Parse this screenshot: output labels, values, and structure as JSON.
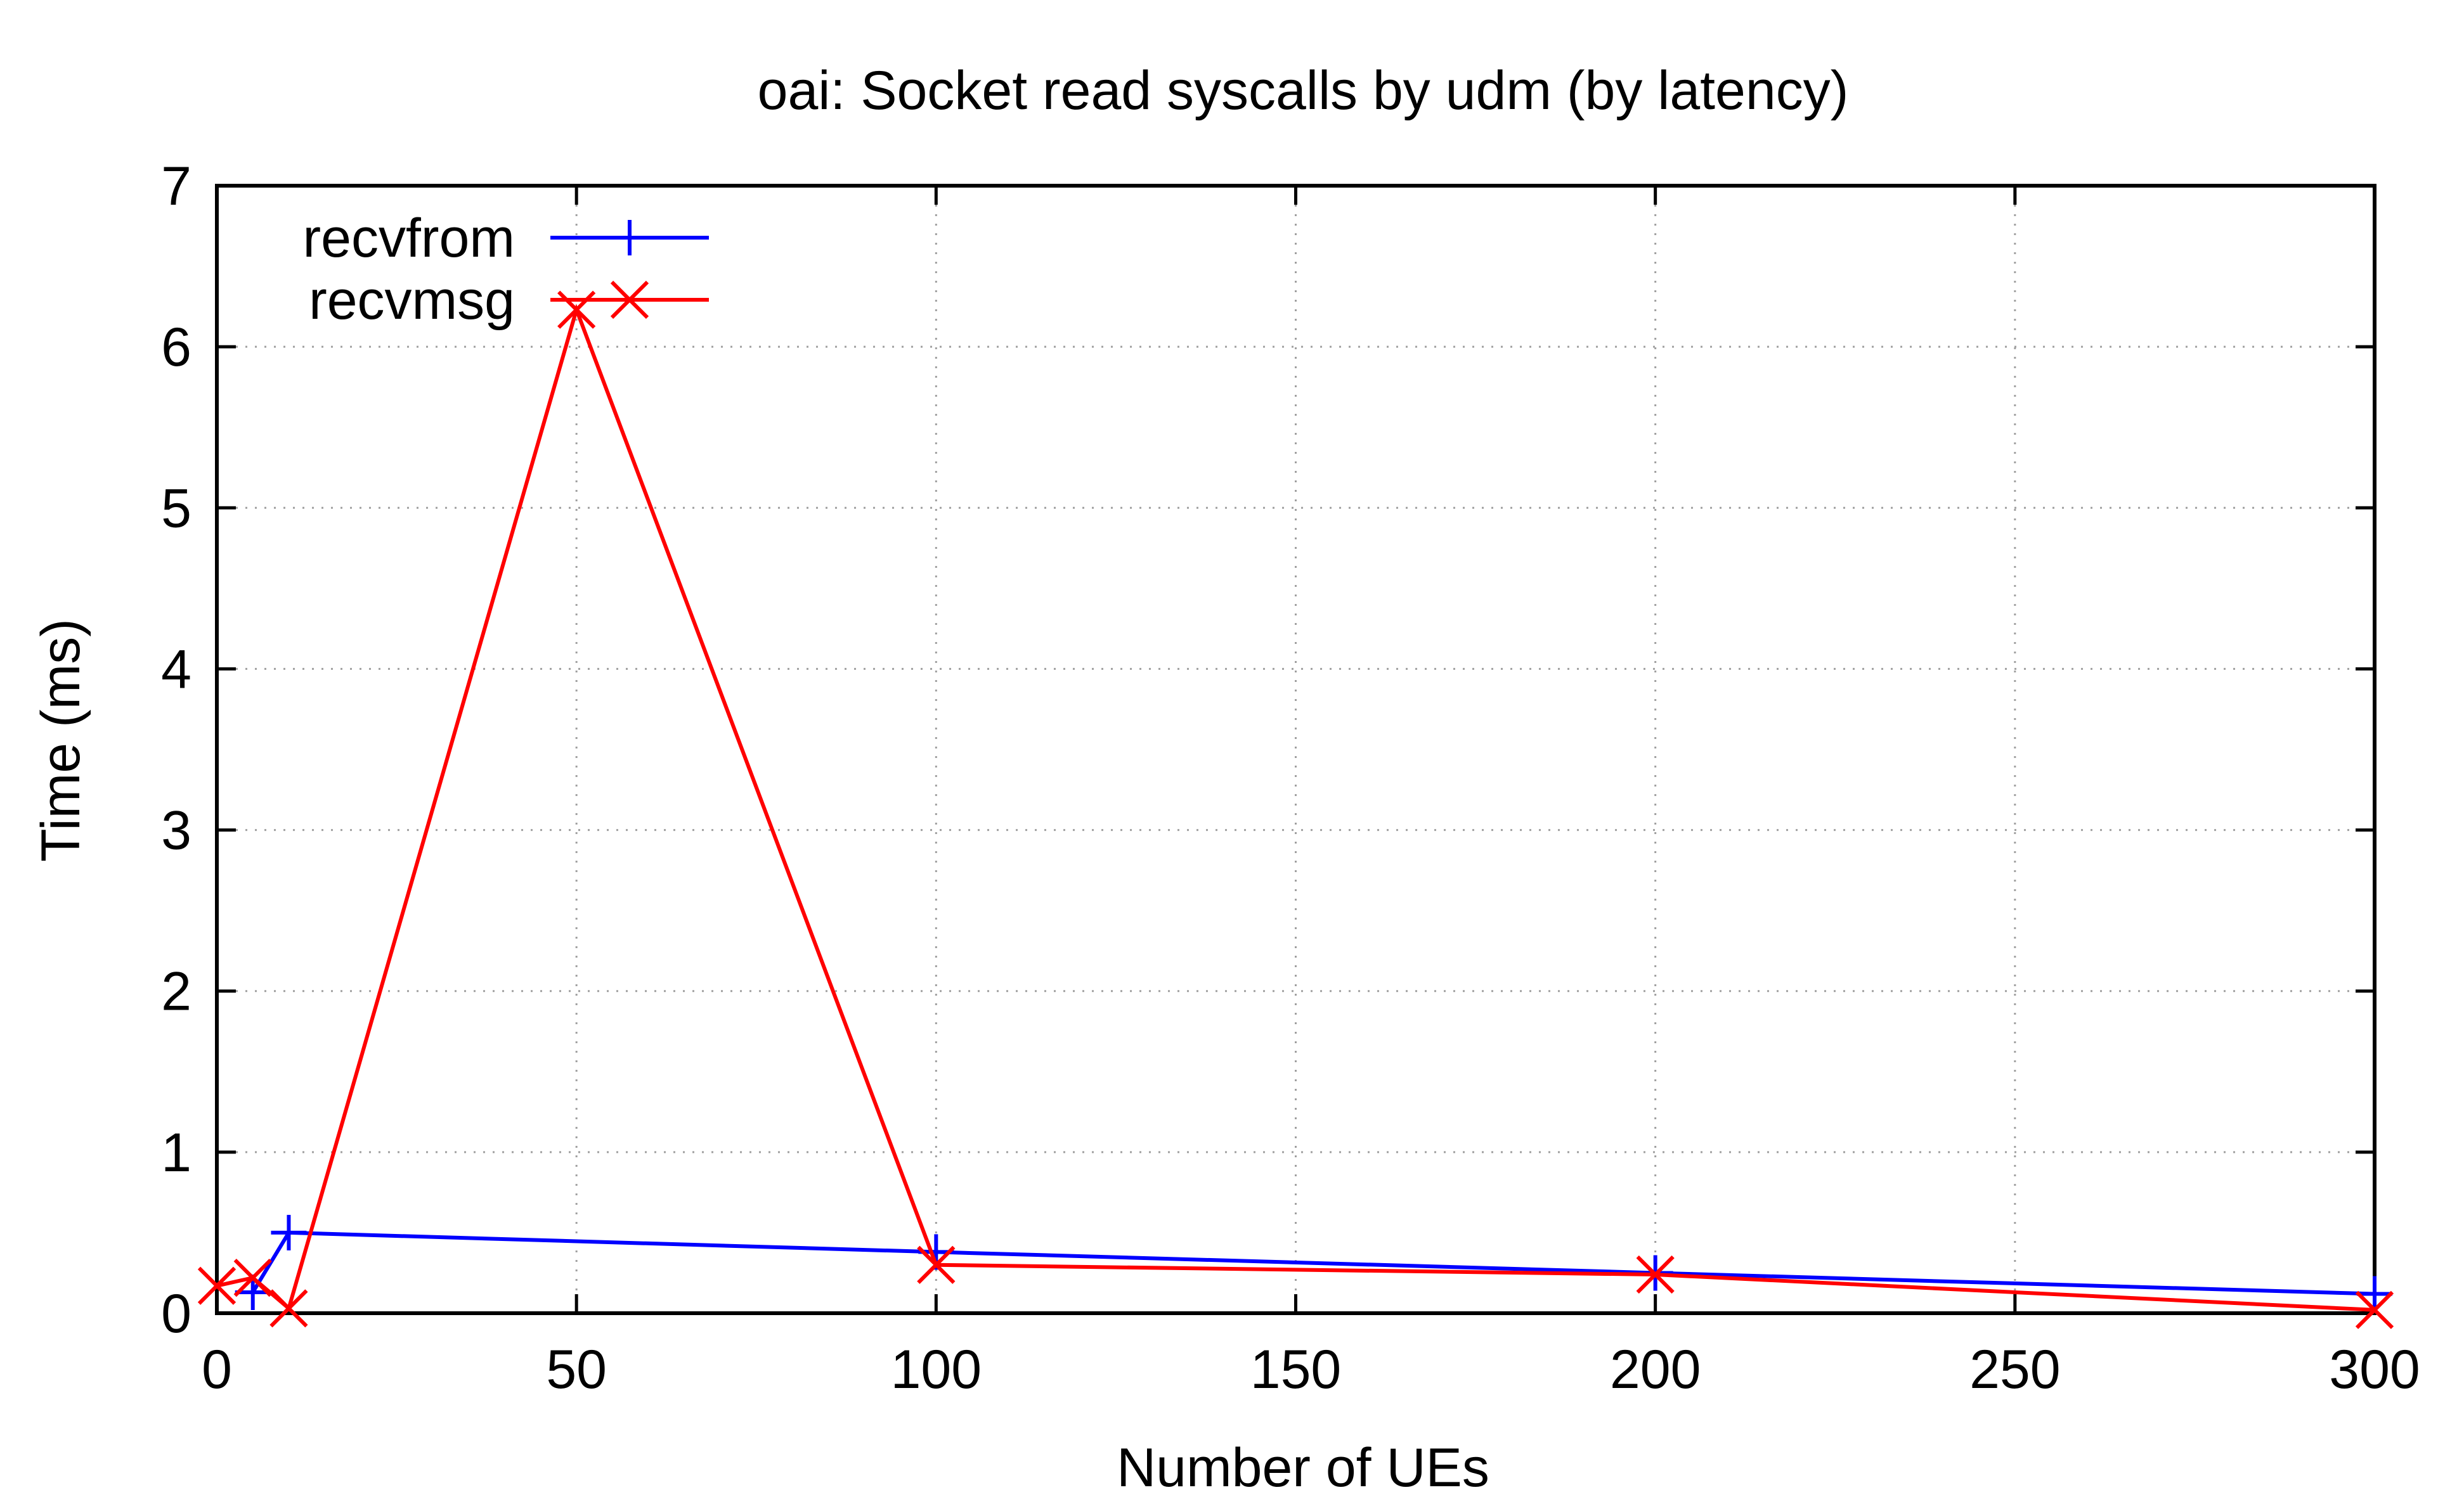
{
  "chart_data": {
    "type": "line",
    "title": "oai: Socket read syscalls by udm (by latency)",
    "xlabel": "Number of UEs",
    "ylabel": "Time (ms)",
    "xlim": [
      0,
      300
    ],
    "ylim": [
      0,
      7
    ],
    "xticks": [
      0,
      50,
      100,
      150,
      200,
      250,
      300
    ],
    "yticks": [
      0,
      1,
      2,
      3,
      4,
      5,
      6,
      7
    ],
    "grid": true,
    "legend_position": "top-left",
    "series": [
      {
        "name": "recvfrom",
        "color": "#0000ff",
        "marker": "plus",
        "x": [
          5,
          10,
          100,
          200,
          300
        ],
        "y": [
          0.13,
          0.5,
          0.38,
          0.25,
          0.12
        ]
      },
      {
        "name": "recvmsg",
        "color": "#ff0000",
        "marker": "cross",
        "x": [
          0,
          5,
          10,
          50,
          100,
          200,
          300
        ],
        "y": [
          0.17,
          0.22,
          0.03,
          6.23,
          0.3,
          0.24,
          0.02
        ]
      }
    ]
  }
}
